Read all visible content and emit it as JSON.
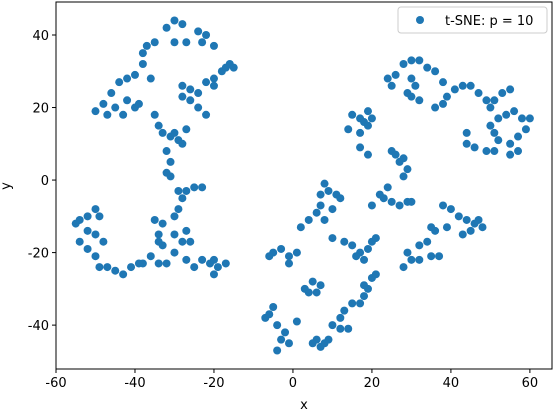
{
  "chart_data": {
    "type": "scatter",
    "xlabel": "x",
    "ylabel": "y",
    "xlim": [
      -60,
      65.6
    ],
    "ylim": [
      -52.1,
      49.1
    ],
    "xticks": [
      -60,
      -40,
      -20,
      0,
      20,
      40,
      60
    ],
    "yticks": [
      -40,
      -20,
      0,
      20,
      40
    ],
    "legend": "upper right",
    "series": [
      {
        "name": "t-SNE: p = 10",
        "color": "#1f77b4",
        "x": [
          -30,
          -28,
          -32,
          -35,
          -37,
          -38,
          -38,
          -36,
          -30,
          -27,
          -24,
          -22,
          -23,
          -20,
          -28,
          -26,
          -24,
          -26,
          -24,
          -22,
          -28,
          -22,
          -20,
          -20,
          -18,
          -16,
          -15,
          -17,
          -50,
          -48,
          -46,
          -44,
          -42,
          -40,
          -45,
          -43,
          -40,
          -42,
          -39,
          -47,
          -35,
          -34,
          -33,
          -31,
          -29,
          -28,
          -30,
          -27,
          -32,
          -31,
          -32,
          -31,
          -29,
          -27,
          -25,
          -23,
          -28,
          -29,
          -30,
          -30,
          -33,
          -35,
          -34,
          -33,
          -36,
          -34,
          -32,
          -30,
          -28,
          -27,
          -26,
          -27,
          -25,
          -23,
          -21,
          -20,
          -19,
          -20,
          -17,
          -34,
          -55,
          -54,
          -52,
          -50,
          -49,
          -52,
          -50,
          -48,
          -54,
          -52,
          -50,
          -49,
          -47,
          -45,
          -43,
          -41,
          -39,
          -38,
          -5,
          -3,
          -1,
          1,
          -1,
          -6,
          -6,
          -5,
          -4,
          -2,
          -3,
          -4,
          -1,
          1,
          -7,
          3,
          5,
          6,
          7,
          4,
          6,
          7,
          8,
          9,
          5,
          10,
          12,
          13,
          12,
          14,
          15,
          17,
          18,
          19,
          20,
          21,
          18,
          2,
          4,
          6,
          7,
          7,
          8,
          9,
          11,
          12,
          10,
          8,
          10,
          13,
          15,
          17,
          19,
          20,
          21,
          18,
          16,
          15,
          17,
          18,
          19,
          20,
          19,
          17,
          14,
          17,
          19,
          25,
          26,
          27,
          28,
          29,
          28,
          24,
          22,
          20,
          25,
          27,
          29,
          30,
          23,
          25,
          24,
          26,
          28,
          30,
          32,
          34,
          36,
          38,
          30,
          31,
          29,
          30,
          32,
          36,
          38,
          39,
          41,
          43,
          45,
          47,
          49,
          51,
          53,
          55,
          50,
          52,
          54,
          56,
          58,
          60,
          59,
          57,
          55,
          57,
          55,
          50,
          51,
          52,
          44,
          44,
          46,
          49,
          51,
          38,
          40,
          42,
          44,
          46,
          47,
          48,
          45,
          43,
          39,
          36,
          35,
          34,
          35,
          37,
          32,
          30,
          28,
          32,
          29
        ],
        "values": [
          44,
          43,
          42,
          38,
          37,
          35,
          32,
          28,
          38,
          38,
          41,
          40,
          38,
          37,
          26,
          25,
          24,
          22,
          20,
          18,
          23,
          27,
          26,
          28,
          30,
          32,
          31,
          31,
          19,
          21,
          24,
          27,
          28,
          29,
          20,
          18,
          20,
          22,
          21,
          18,
          18,
          15,
          13,
          12,
          11,
          10,
          13,
          14,
          8,
          5,
          2,
          1,
          -3,
          -3,
          -2,
          -2,
          -5,
          -8,
          -10,
          -15,
          -12,
          -11,
          -15,
          -18,
          -21,
          -23,
          -23,
          -20,
          -17,
          -14,
          -17,
          -22,
          -24,
          -22,
          -23,
          -26,
          -24,
          -22,
          -23,
          -17,
          -12,
          -11,
          -10,
          -8,
          -10,
          -14,
          -15,
          -17,
          -17,
          -19,
          -21,
          -24,
          -24,
          -25,
          -26,
          -24,
          -23,
          -23,
          -20,
          -19,
          -21,
          -20,
          -23,
          -21,
          -37,
          -35,
          -40,
          -42,
          -44,
          -47,
          -45,
          -39,
          -38,
          -30,
          -28,
          -31,
          -29,
          -31,
          -44,
          -46,
          -45,
          -44,
          -45,
          -40,
          -38,
          -36,
          -41,
          -41,
          -34,
          -34,
          -32,
          -30,
          -27,
          -26,
          -29,
          -13,
          -11,
          -9,
          -7,
          -4,
          -1,
          -3,
          -4,
          -5,
          -8,
          -11,
          -16,
          -17,
          -18,
          -20,
          -19,
          -17,
          -16,
          -22,
          -21,
          18,
          17,
          16,
          15,
          17,
          19,
          13,
          14,
          9,
          7,
          8,
          7,
          5,
          6,
          3,
          1,
          -2,
          -4,
          -7,
          -6,
          -7,
          -6,
          -6,
          -5,
          26,
          28,
          29,
          32,
          33,
          33,
          31,
          30,
          27,
          28,
          26,
          24,
          23,
          22,
          20,
          21,
          23,
          25,
          26,
          26,
          24,
          22,
          22,
          24,
          25,
          20,
          17,
          18,
          19,
          17,
          17,
          14,
          12,
          10,
          8,
          7,
          15,
          13,
          11,
          13,
          10,
          9,
          8,
          8,
          -7,
          -8,
          -10,
          -11,
          -12,
          -11,
          -13,
          -14,
          -15,
          -13,
          -14,
          -13,
          -17,
          -21,
          -21,
          -22,
          -22,
          -24,
          -18,
          -20
        ]
      }
    ]
  }
}
